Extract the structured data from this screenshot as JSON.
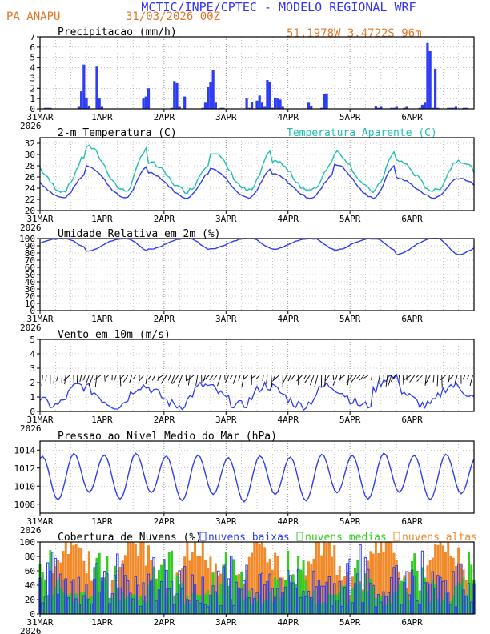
{
  "header": {
    "title": "MCTIC/INPE/CPTEC - MODELO REGIONAL WRF",
    "location": "PA ANAPU",
    "run_date": "31/03/2026 00Z",
    "coords": "51.1978W 3.4722S 96m"
  },
  "colors": {
    "blue": "#2e3df2",
    "orange": "#f08a2a",
    "cyan": "#1fbfb0",
    "green": "#33cc22",
    "header_blue": "#3333ff",
    "header_orange": "#e0782a"
  },
  "x_axis": {
    "labels": [
      "31MAR",
      "1APR",
      "2APR",
      "3APR",
      "4APR",
      "5APR",
      "6APR"
    ],
    "year": "2026",
    "range_hours": [
      0,
      168
    ]
  },
  "chart_data": [
    {
      "type": "bar",
      "title": "Precipitacao (mm/h)",
      "ylim": [
        0,
        7
      ],
      "yticks": [
        "0",
        "1",
        "2",
        "3",
        "4",
        "5",
        "6",
        "7"
      ],
      "series": [
        {
          "name": "precip",
          "x": [
            2,
            3,
            4,
            15,
            16,
            17,
            18,
            19,
            22,
            23,
            24,
            40,
            41,
            42,
            51,
            52,
            53,
            54,
            56,
            63,
            64,
            65,
            66,
            67,
            68,
            70,
            71,
            80,
            81,
            82,
            84,
            85,
            86,
            87,
            88,
            89,
            90,
            91,
            92,
            93,
            94,
            104,
            105,
            109,
            110,
            111,
            130,
            131,
            132,
            136,
            137,
            138,
            141,
            142,
            147,
            148,
            149,
            150,
            151,
            152,
            153,
            154,
            158,
            159,
            160,
            161,
            164,
            165
          ],
          "values": [
            0.1,
            0.1,
            0.1,
            0.2,
            1.7,
            4.3,
            1.1,
            0.3,
            4.1,
            1.0,
            0.2,
            1.0,
            1.2,
            2.0,
            0.1,
            2.7,
            2.5,
            0.2,
            1.2,
            0.1,
            0.6,
            2.1,
            2.6,
            3.8,
            0.6,
            0.1,
            0.1,
            1.0,
            0.1,
            0.7,
            0.8,
            1.3,
            0.6,
            0.2,
            2.8,
            2.6,
            0.1,
            1.1,
            1.0,
            0.9,
            0.2,
            0.6,
            0.3,
            0.1,
            1.4,
            1.5,
            0.3,
            0.1,
            0.2,
            0.1,
            0.1,
            0.2,
            0.1,
            0.2,
            0.1,
            0.4,
            0.6,
            6.4,
            5.6,
            0.1,
            3.9,
            0.1,
            0.1,
            0.1,
            0.1,
            0.2,
            0.1,
            0.1
          ]
        }
      ]
    },
    {
      "type": "line",
      "title": "2-m Temperatura (C)",
      "legend": "Temperatura Aparente (C)",
      "ylim": [
        20,
        33
      ],
      "yticks": [
        "20",
        "22",
        "24",
        "26",
        "28",
        "30",
        "32"
      ],
      "series": [
        {
          "name": "temperature",
          "min": 22.3,
          "max": 28.0,
          "color": "blue"
        },
        {
          "name": "apparent",
          "min": 23.5,
          "max": 31.5,
          "color": "cyan"
        }
      ]
    },
    {
      "type": "line",
      "title": "Umidade Relativa em 2m (%)",
      "ylim": [
        0,
        100
      ],
      "yticks": [
        "0",
        "10",
        "20",
        "30",
        "40",
        "50",
        "60",
        "70",
        "80",
        "90",
        "100"
      ],
      "series": [
        {
          "name": "rh",
          "min": 78,
          "max": 100
        }
      ]
    },
    {
      "type": "line",
      "title": "Vento em 10m (m/s)",
      "ylim": [
        0,
        5
      ],
      "yticks": [
        "0",
        "1",
        "2",
        "3",
        "4",
        "5"
      ],
      "series": [
        {
          "name": "wind_speed",
          "min": 0.1,
          "max": 2.6
        }
      ]
    },
    {
      "type": "line",
      "title": "Pressao ao Nivel Medio do Mar (hPa)",
      "ylim": [
        1007,
        1015
      ],
      "yticks": [
        "1008",
        "1010",
        "1012",
        "1014"
      ],
      "series": [
        {
          "name": "mslp",
          "min": 1008.3,
          "max": 1014.1
        }
      ]
    },
    {
      "type": "bar",
      "title": "Cobertura de Nuvens (%)",
      "ylim": [
        0,
        100
      ],
      "yticks": [
        "0",
        "20",
        "40",
        "60",
        "80",
        "100"
      ],
      "legend": [
        "nuvens baixas",
        "nuvens medias",
        "nuvens altas"
      ],
      "series": [
        {
          "name": "nuvens baixas",
          "color": "blue"
        },
        {
          "name": "nuvens medias",
          "color": "green"
        },
        {
          "name": "nuvens altas",
          "color": "orange"
        }
      ]
    }
  ]
}
